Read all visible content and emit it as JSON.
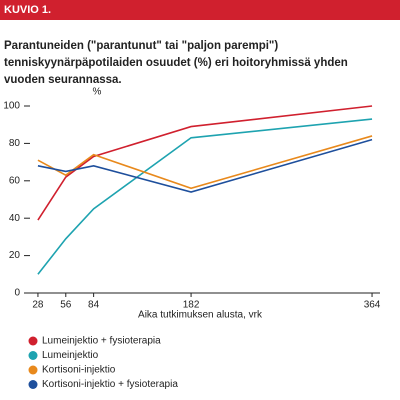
{
  "header": "KUVIO 1.",
  "chart_data": {
    "type": "line",
    "title": "Parantuneiden (\"parantunut\" tai \"paljon parempi\") tenniskyynärpäpotilaiden osuudet (%) eri hoitoryhmissä yhden vuoden seurannassa.",
    "xlabel": "Aika tutkimuksen alusta, vrk",
    "ylabel": "%",
    "x": [
      28,
      56,
      84,
      182,
      364
    ],
    "xlim": [
      17,
      372
    ],
    "xticks": [
      28,
      56,
      84,
      182,
      364
    ],
    "ylim": [
      0,
      100
    ],
    "yticks": [
      0,
      20,
      40,
      60,
      80,
      100
    ],
    "grid": false,
    "series": [
      {
        "name": "Lumeinjektio + fysioterapia",
        "color": "#d0202e",
        "values": [
          39,
          62,
          73,
          89,
          100
        ]
      },
      {
        "name": "Lumeinjektio",
        "color": "#1ea3b0",
        "values": [
          10,
          29,
          45,
          83,
          93
        ]
      },
      {
        "name": "Kortisoni-injektio",
        "color": "#e8891c",
        "values": [
          71,
          63,
          74,
          56,
          84
        ]
      },
      {
        "name": "Kortisoni-injektio + fysioterapia",
        "color": "#1e4f9c",
        "values": [
          68,
          65,
          68,
          54,
          82
        ]
      }
    ]
  }
}
